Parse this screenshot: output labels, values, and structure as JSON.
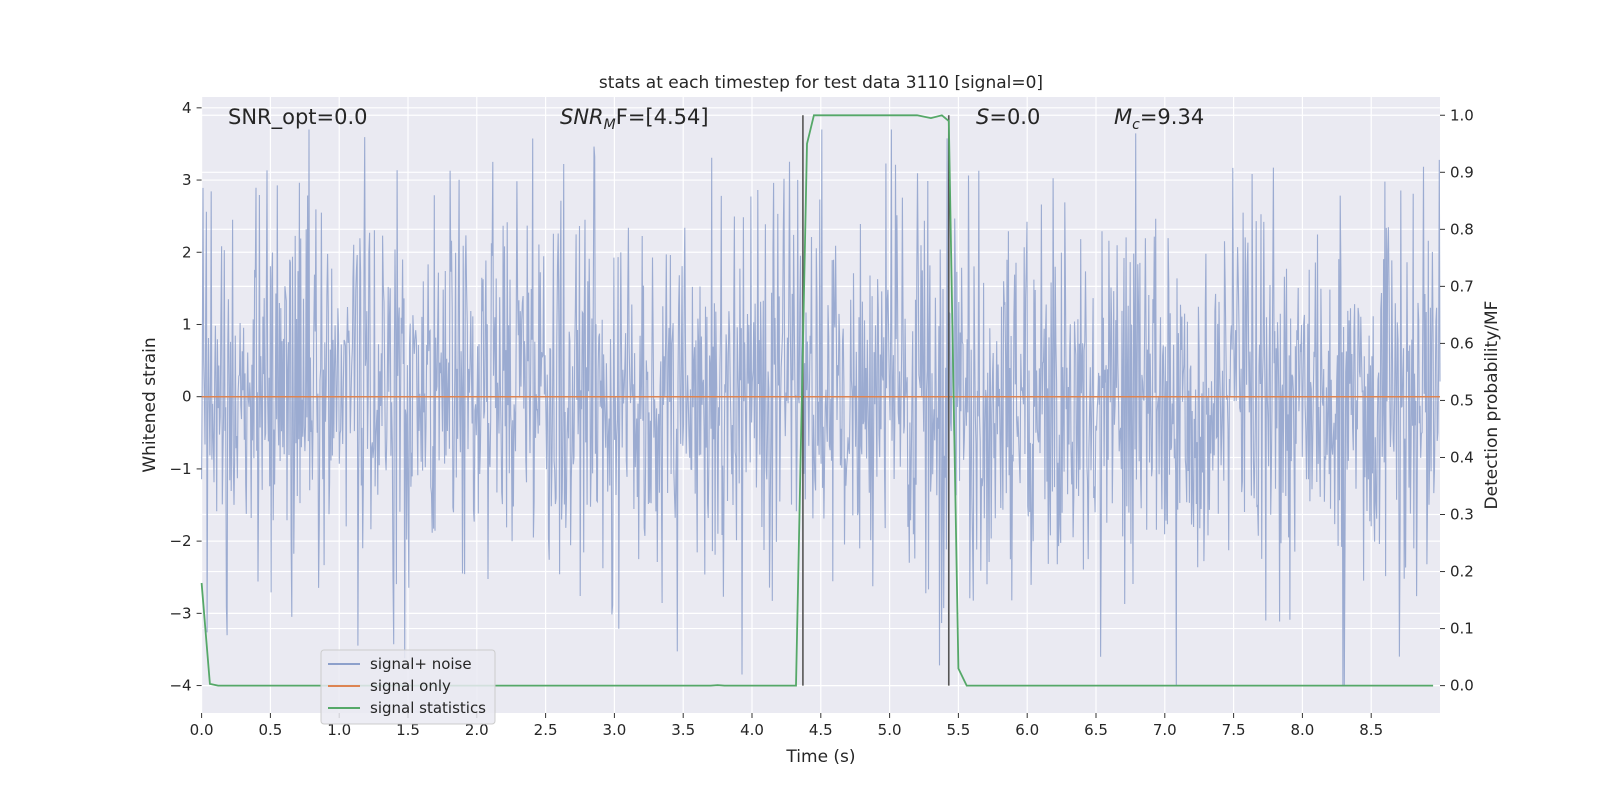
{
  "chart_data": {
    "type": "line",
    "title": "stats at each timestep for test data 3110 [signal=0]",
    "xlabel": "Time (s)",
    "ylabel": "Whitened strain",
    "ylabel_right": "Detection probability/MF",
    "xlim": [
      0.0,
      9.0
    ],
    "ylim": [
      -4.38,
      4.15
    ],
    "ylim_right": [
      -0.048,
      1.032
    ],
    "x_ticks": [
      "0.0",
      "0.5",
      "1.0",
      "1.5",
      "2.0",
      "2.5",
      "3.0",
      "3.5",
      "4.0",
      "4.5",
      "5.0",
      "5.5",
      "6.0",
      "6.5",
      "7.0",
      "7.5",
      "8.0",
      "8.5"
    ],
    "y_ticks": [
      "4",
      "3",
      "2",
      "1",
      "0",
      "−1",
      "−2",
      "−3",
      "−4"
    ],
    "y_ticks_right": [
      "1.0",
      "0.9",
      "0.8",
      "0.7",
      "0.6",
      "0.5",
      "0.4",
      "0.3",
      "0.2",
      "0.1",
      "0.0"
    ],
    "grid": true,
    "legend_position": "lower-left",
    "annotations": {
      "snr_opt": "SNR_opt=0.0",
      "snr_mf_main": "SNR",
      "snr_mf_sub": "M",
      "snr_mf_rest": "F=[4.54]",
      "s_main": "S",
      "s_rest": "=0.0",
      "mc_main": "M",
      "mc_sub": "c",
      "mc_rest": "=9.34"
    },
    "series": [
      {
        "name": "signal+ noise",
        "color": "#8da0cb",
        "description_of_data": "white noise, amplitude mostly within ±2, extremes about ±3.7",
        "approx_envelope": {
          "typical": 1.4,
          "max": 3.7,
          "min": -4.0
        }
      },
      {
        "name": "signal only",
        "color": "#dd8452",
        "x": [
          0.0,
          9.0
        ],
        "y": [
          0.0,
          0.0
        ]
      },
      {
        "name": "signal statistics",
        "color": "#55a868",
        "axis": "right",
        "x": [
          0.0,
          0.06,
          0.12,
          3.7,
          3.75,
          3.8,
          4.32,
          4.4,
          4.45,
          5.2,
          5.3,
          5.38,
          5.43,
          5.5,
          5.56,
          5.62,
          8.95
        ],
        "y": [
          0.18,
          0.003,
          0.0,
          0.0,
          0.001,
          0.0,
          0.0,
          0.95,
          1.0,
          1.0,
          0.995,
          1.0,
          0.99,
          0.03,
          0.0,
          0.0,
          0.0
        ]
      }
    ],
    "vertical_markers": {
      "color": "#555555",
      "x": [
        4.37,
        5.43
      ]
    }
  }
}
